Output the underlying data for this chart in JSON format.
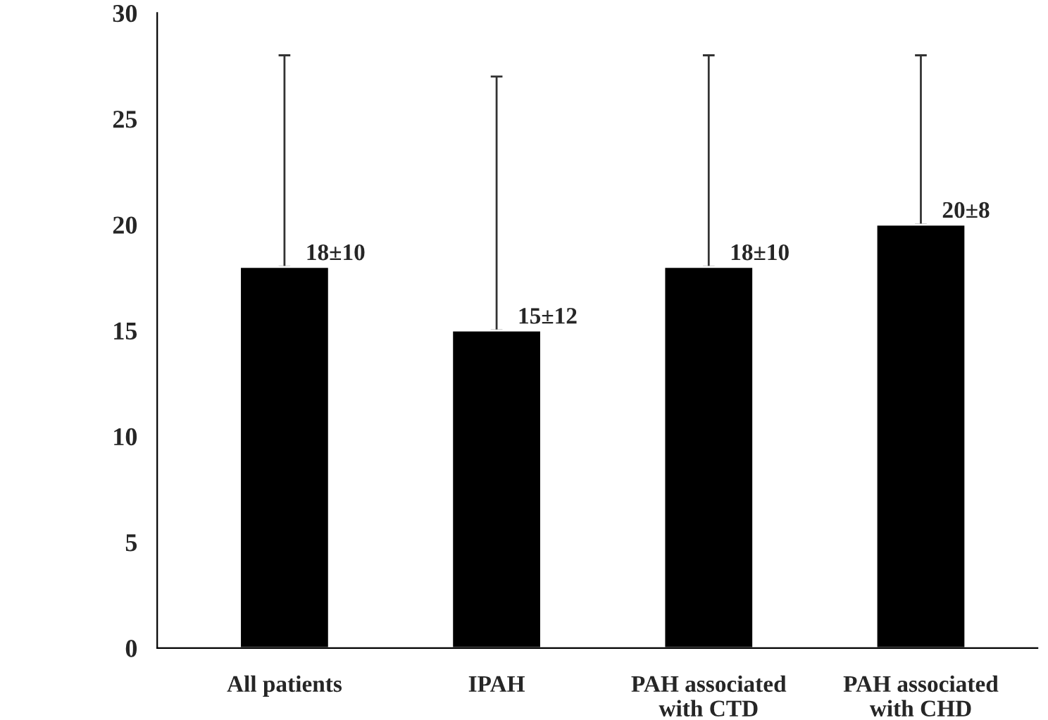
{
  "chart_data": {
    "type": "bar",
    "categories": [
      "All patients",
      "IPAH",
      "PAH associated\nwith CTD",
      "PAH associated\nwith CHD"
    ],
    "values": [
      18,
      15,
      18,
      20
    ],
    "errors": [
      [
        18,
        28
      ],
      [
        15,
        27
      ],
      [
        18,
        28
      ],
      [
        20,
        28
      ]
    ],
    "value_labels": [
      "18±10",
      "15±12",
      "18±10",
      "20±8"
    ],
    "color": "#000000",
    "ylim": [
      0,
      30
    ],
    "yticks": [
      0,
      5,
      10,
      15,
      20,
      25,
      30
    ],
    "grid": false,
    "legend": false
  }
}
